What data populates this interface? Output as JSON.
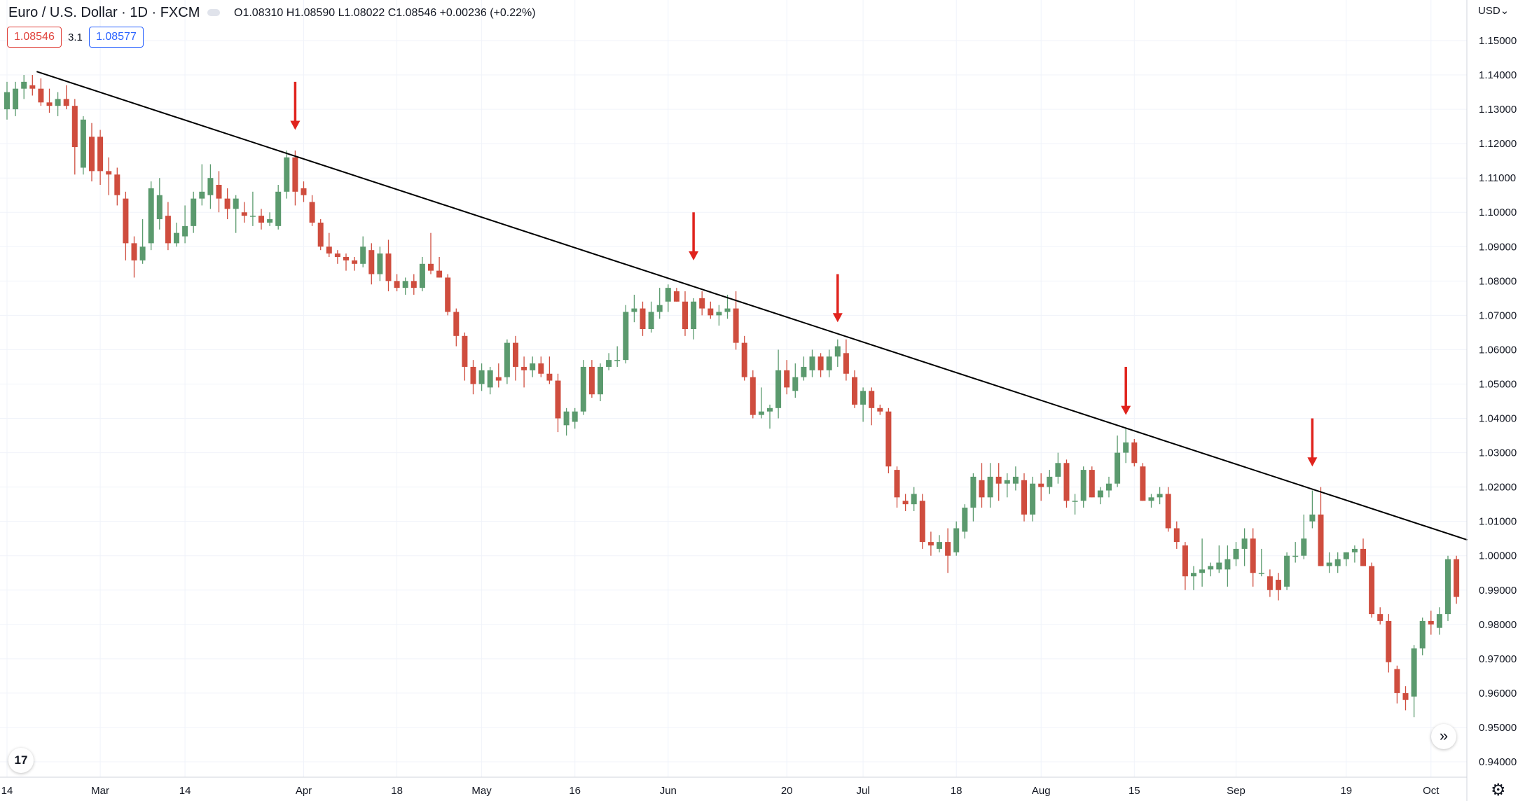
{
  "legend": {
    "title": "Euro / U.S. Dollar · 1D · FXCM",
    "ohlc": "O1.08310 H1.08590 L1.08022 C1.08546 +0.00236 (+0.22%)",
    "bid": "1.08546",
    "spread": "3.1",
    "ask": "1.08577"
  },
  "axis": {
    "currency": "USD",
    "currency_icon": "chevron-down-icon"
  },
  "logo": {
    "text": "17"
  },
  "colors": {
    "up": "#5b9a6e",
    "down": "#cf4d3e",
    "trendline": "#000000",
    "arrow": "#e0231d",
    "grid": "#f0f3fa"
  },
  "chart_data": {
    "type": "candlestick",
    "symbol": "EURUSD",
    "timeframe": "1D",
    "ylim": [
      0.94,
      1.15
    ],
    "y_ticks": [
      "1.15000",
      "1.14000",
      "1.13000",
      "1.12000",
      "1.11000",
      "1.10000",
      "1.09000",
      "1.08000",
      "1.07000",
      "1.06000",
      "1.05000",
      "1.04000",
      "1.03000",
      "1.02000",
      "1.01000",
      "1.00000",
      "0.99000",
      "0.98000",
      "0.97000",
      "0.96000",
      "0.95000",
      "0.94000"
    ],
    "x_ticks": [
      {
        "label": "14",
        "index": 0
      },
      {
        "label": "Mar",
        "index": 11
      },
      {
        "label": "14",
        "index": 21
      },
      {
        "label": "Apr",
        "index": 35
      },
      {
        "label": "18",
        "index": 46
      },
      {
        "label": "May",
        "index": 56
      },
      {
        "label": "16",
        "index": 67
      },
      {
        "label": "Jun",
        "index": 78
      },
      {
        "label": "20",
        "index": 92
      },
      {
        "label": "Jul",
        "index": 101
      },
      {
        "label": "18",
        "index": 112
      },
      {
        "label": "Aug",
        "index": 122
      },
      {
        "label": "15",
        "index": 133
      },
      {
        "label": "Sep",
        "index": 145
      },
      {
        "label": "19",
        "index": 158
      },
      {
        "label": "Oct",
        "index": 168
      }
    ],
    "candles": [
      {
        "o": 1.13,
        "h": 1.138,
        "l": 1.127,
        "c": 1.135
      },
      {
        "o": 1.13,
        "h": 1.138,
        "l": 1.128,
        "c": 1.136
      },
      {
        "o": 1.136,
        "h": 1.14,
        "l": 1.133,
        "c": 1.138
      },
      {
        "o": 1.137,
        "h": 1.14,
        "l": 1.134,
        "c": 1.136
      },
      {
        "o": 1.136,
        "h": 1.139,
        "l": 1.131,
        "c": 1.132
      },
      {
        "o": 1.132,
        "h": 1.136,
        "l": 1.129,
        "c": 1.131
      },
      {
        "o": 1.131,
        "h": 1.135,
        "l": 1.128,
        "c": 1.133
      },
      {
        "o": 1.133,
        "h": 1.137,
        "l": 1.13,
        "c": 1.131
      },
      {
        "o": 1.131,
        "h": 1.133,
        "l": 1.111,
        "c": 1.119
      },
      {
        "o": 1.113,
        "h": 1.128,
        "l": 1.111,
        "c": 1.127
      },
      {
        "o": 1.122,
        "h": 1.126,
        "l": 1.109,
        "c": 1.112
      },
      {
        "o": 1.122,
        "h": 1.124,
        "l": 1.108,
        "c": 1.112
      },
      {
        "o": 1.112,
        "h": 1.116,
        "l": 1.105,
        "c": 1.111
      },
      {
        "o": 1.111,
        "h": 1.113,
        "l": 1.102,
        "c": 1.105
      },
      {
        "o": 1.104,
        "h": 1.106,
        "l": 1.086,
        "c": 1.091
      },
      {
        "o": 1.091,
        "h": 1.093,
        "l": 1.081,
        "c": 1.086
      },
      {
        "o": 1.086,
        "h": 1.098,
        "l": 1.085,
        "c": 1.09
      },
      {
        "o": 1.091,
        "h": 1.109,
        "l": 1.089,
        "c": 1.107
      },
      {
        "o": 1.098,
        "h": 1.11,
        "l": 1.095,
        "c": 1.105
      },
      {
        "o": 1.099,
        "h": 1.103,
        "l": 1.089,
        "c": 1.091
      },
      {
        "o": 1.091,
        "h": 1.097,
        "l": 1.09,
        "c": 1.094
      },
      {
        "o": 1.093,
        "h": 1.102,
        "l": 1.091,
        "c": 1.096
      },
      {
        "o": 1.096,
        "h": 1.106,
        "l": 1.094,
        "c": 1.104
      },
      {
        "o": 1.104,
        "h": 1.114,
        "l": 1.102,
        "c": 1.106
      },
      {
        "o": 1.105,
        "h": 1.114,
        "l": 1.101,
        "c": 1.11
      },
      {
        "o": 1.108,
        "h": 1.112,
        "l": 1.1,
        "c": 1.104
      },
      {
        "o": 1.104,
        "h": 1.107,
        "l": 1.098,
        "c": 1.101
      },
      {
        "o": 1.101,
        "h": 1.105,
        "l": 1.094,
        "c": 1.104
      },
      {
        "o": 1.1,
        "h": 1.103,
        "l": 1.097,
        "c": 1.099
      },
      {
        "o": 1.099,
        "h": 1.106,
        "l": 1.096,
        "c": 1.099
      },
      {
        "o": 1.099,
        "h": 1.101,
        "l": 1.095,
        "c": 1.097
      },
      {
        "o": 1.097,
        "h": 1.1,
        "l": 1.096,
        "c": 1.098
      },
      {
        "o": 1.096,
        "h": 1.108,
        "l": 1.095,
        "c": 1.106
      },
      {
        "o": 1.106,
        "h": 1.118,
        "l": 1.104,
        "c": 1.116
      },
      {
        "o": 1.116,
        "h": 1.118,
        "l": 1.102,
        "c": 1.106
      },
      {
        "o": 1.107,
        "h": 1.109,
        "l": 1.103,
        "c": 1.105
      },
      {
        "o": 1.103,
        "h": 1.105,
        "l": 1.096,
        "c": 1.097
      },
      {
        "o": 1.097,
        "h": 1.098,
        "l": 1.089,
        "c": 1.09
      },
      {
        "o": 1.09,
        "h": 1.094,
        "l": 1.087,
        "c": 1.088
      },
      {
        "o": 1.088,
        "h": 1.089,
        "l": 1.085,
        "c": 1.087
      },
      {
        "o": 1.087,
        "h": 1.088,
        "l": 1.083,
        "c": 1.086
      },
      {
        "o": 1.086,
        "h": 1.087,
        "l": 1.083,
        "c": 1.085
      },
      {
        "o": 1.085,
        "h": 1.093,
        "l": 1.084,
        "c": 1.09
      },
      {
        "o": 1.089,
        "h": 1.091,
        "l": 1.079,
        "c": 1.082
      },
      {
        "o": 1.082,
        "h": 1.09,
        "l": 1.08,
        "c": 1.088
      },
      {
        "o": 1.088,
        "h": 1.092,
        "l": 1.077,
        "c": 1.08
      },
      {
        "o": 1.08,
        "h": 1.082,
        "l": 1.077,
        "c": 1.078
      },
      {
        "o": 1.078,
        "h": 1.081,
        "l": 1.076,
        "c": 1.08
      },
      {
        "o": 1.08,
        "h": 1.082,
        "l": 1.076,
        "c": 1.078
      },
      {
        "o": 1.078,
        "h": 1.087,
        "l": 1.077,
        "c": 1.085
      },
      {
        "o": 1.085,
        "h": 1.094,
        "l": 1.082,
        "c": 1.083
      },
      {
        "o": 1.083,
        "h": 1.087,
        "l": 1.081,
        "c": 1.081
      },
      {
        "o": 1.081,
        "h": 1.082,
        "l": 1.07,
        "c": 1.071
      },
      {
        "o": 1.071,
        "h": 1.072,
        "l": 1.061,
        "c": 1.064
      },
      {
        "o": 1.064,
        "h": 1.065,
        "l": 1.051,
        "c": 1.055
      },
      {
        "o": 1.055,
        "h": 1.057,
        "l": 1.047,
        "c": 1.05
      },
      {
        "o": 1.05,
        "h": 1.056,
        "l": 1.048,
        "c": 1.054
      },
      {
        "o": 1.049,
        "h": 1.055,
        "l": 1.047,
        "c": 1.054
      },
      {
        "o": 1.052,
        "h": 1.056,
        "l": 1.049,
        "c": 1.051
      },
      {
        "o": 1.052,
        "h": 1.063,
        "l": 1.05,
        "c": 1.062
      },
      {
        "o": 1.062,
        "h": 1.064,
        "l": 1.051,
        "c": 1.055
      },
      {
        "o": 1.055,
        "h": 1.058,
        "l": 1.049,
        "c": 1.054
      },
      {
        "o": 1.054,
        "h": 1.058,
        "l": 1.052,
        "c": 1.056
      },
      {
        "o": 1.056,
        "h": 1.058,
        "l": 1.052,
        "c": 1.053
      },
      {
        "o": 1.053,
        "h": 1.058,
        "l": 1.05,
        "c": 1.051
      },
      {
        "o": 1.051,
        "h": 1.053,
        "l": 1.036,
        "c": 1.04
      },
      {
        "o": 1.038,
        "h": 1.043,
        "l": 1.035,
        "c": 1.042
      },
      {
        "o": 1.039,
        "h": 1.043,
        "l": 1.037,
        "c": 1.042
      },
      {
        "o": 1.042,
        "h": 1.057,
        "l": 1.041,
        "c": 1.055
      },
      {
        "o": 1.055,
        "h": 1.057,
        "l": 1.046,
        "c": 1.047
      },
      {
        "o": 1.047,
        "h": 1.056,
        "l": 1.045,
        "c": 1.055
      },
      {
        "o": 1.055,
        "h": 1.059,
        "l": 1.054,
        "c": 1.057
      },
      {
        "o": 1.057,
        "h": 1.061,
        "l": 1.055,
        "c": 1.057
      },
      {
        "o": 1.057,
        "h": 1.073,
        "l": 1.056,
        "c": 1.071
      },
      {
        "o": 1.071,
        "h": 1.076,
        "l": 1.068,
        "c": 1.072
      },
      {
        "o": 1.072,
        "h": 1.074,
        "l": 1.064,
        "c": 1.066
      },
      {
        "o": 1.066,
        "h": 1.074,
        "l": 1.065,
        "c": 1.071
      },
      {
        "o": 1.071,
        "h": 1.078,
        "l": 1.069,
        "c": 1.073
      },
      {
        "o": 1.074,
        "h": 1.079,
        "l": 1.071,
        "c": 1.078
      },
      {
        "o": 1.077,
        "h": 1.078,
        "l": 1.074,
        "c": 1.074
      },
      {
        "o": 1.074,
        "h": 1.077,
        "l": 1.064,
        "c": 1.066
      },
      {
        "o": 1.066,
        "h": 1.075,
        "l": 1.063,
        "c": 1.074
      },
      {
        "o": 1.075,
        "h": 1.077,
        "l": 1.07,
        "c": 1.072
      },
      {
        "o": 1.072,
        "h": 1.074,
        "l": 1.069,
        "c": 1.07
      },
      {
        "o": 1.07,
        "h": 1.073,
        "l": 1.067,
        "c": 1.071
      },
      {
        "o": 1.071,
        "h": 1.076,
        "l": 1.069,
        "c": 1.072
      },
      {
        "o": 1.072,
        "h": 1.077,
        "l": 1.06,
        "c": 1.062
      },
      {
        "o": 1.062,
        "h": 1.064,
        "l": 1.051,
        "c": 1.052
      },
      {
        "o": 1.052,
        "h": 1.054,
        "l": 1.04,
        "c": 1.041
      },
      {
        "o": 1.041,
        "h": 1.049,
        "l": 1.04,
        "c": 1.042
      },
      {
        "o": 1.042,
        "h": 1.044,
        "l": 1.037,
        "c": 1.043
      },
      {
        "o": 1.043,
        "h": 1.06,
        "l": 1.04,
        "c": 1.054
      },
      {
        "o": 1.054,
        "h": 1.057,
        "l": 1.047,
        "c": 1.049
      },
      {
        "o": 1.048,
        "h": 1.056,
        "l": 1.046,
        "c": 1.052
      },
      {
        "o": 1.052,
        "h": 1.058,
        "l": 1.051,
        "c": 1.055
      },
      {
        "o": 1.054,
        "h": 1.06,
        "l": 1.052,
        "c": 1.058
      },
      {
        "o": 1.058,
        "h": 1.059,
        "l": 1.052,
        "c": 1.054
      },
      {
        "o": 1.054,
        "h": 1.06,
        "l": 1.052,
        "c": 1.058
      },
      {
        "o": 1.058,
        "h": 1.063,
        "l": 1.055,
        "c": 1.061
      },
      {
        "o": 1.059,
        "h": 1.063,
        "l": 1.051,
        "c": 1.053
      },
      {
        "o": 1.052,
        "h": 1.054,
        "l": 1.043,
        "c": 1.044
      },
      {
        "o": 1.044,
        "h": 1.049,
        "l": 1.039,
        "c": 1.048
      },
      {
        "o": 1.048,
        "h": 1.049,
        "l": 1.038,
        "c": 1.043
      },
      {
        "o": 1.043,
        "h": 1.044,
        "l": 1.041,
        "c": 1.042
      },
      {
        "o": 1.042,
        "h": 1.043,
        "l": 1.024,
        "c": 1.026
      },
      {
        "o": 1.025,
        "h": 1.026,
        "l": 1.014,
        "c": 1.017
      },
      {
        "o": 1.016,
        "h": 1.018,
        "l": 1.013,
        "c": 1.015
      },
      {
        "o": 1.015,
        "h": 1.02,
        "l": 1.013,
        "c": 1.018
      },
      {
        "o": 1.016,
        "h": 1.018,
        "l": 1.002,
        "c": 1.004
      },
      {
        "o": 1.004,
        "h": 1.007,
        "l": 1.0,
        "c": 1.003
      },
      {
        "o": 1.002,
        "h": 1.006,
        "l": 1.001,
        "c": 1.004
      },
      {
        "o": 1.004,
        "h": 1.008,
        "l": 0.995,
        "c": 1.0
      },
      {
        "o": 1.001,
        "h": 1.01,
        "l": 1.0,
        "c": 1.008
      },
      {
        "o": 1.007,
        "h": 1.015,
        "l": 1.005,
        "c": 1.014
      },
      {
        "o": 1.014,
        "h": 1.024,
        "l": 1.01,
        "c": 1.023
      },
      {
        "o": 1.022,
        "h": 1.027,
        "l": 1.014,
        "c": 1.017
      },
      {
        "o": 1.017,
        "h": 1.027,
        "l": 1.014,
        "c": 1.023
      },
      {
        "o": 1.023,
        "h": 1.027,
        "l": 1.016,
        "c": 1.021
      },
      {
        "o": 1.021,
        "h": 1.024,
        "l": 1.017,
        "c": 1.022
      },
      {
        "o": 1.021,
        "h": 1.026,
        "l": 1.019,
        "c": 1.023
      },
      {
        "o": 1.022,
        "h": 1.024,
        "l": 1.01,
        "c": 1.012
      },
      {
        "o": 1.012,
        "h": 1.023,
        "l": 1.01,
        "c": 1.021
      },
      {
        "o": 1.021,
        "h": 1.024,
        "l": 1.016,
        "c": 1.02
      },
      {
        "o": 1.02,
        "h": 1.025,
        "l": 1.018,
        "c": 1.023
      },
      {
        "o": 1.023,
        "h": 1.03,
        "l": 1.021,
        "c": 1.027
      },
      {
        "o": 1.027,
        "h": 1.028,
        "l": 1.014,
        "c": 1.016
      },
      {
        "o": 1.016,
        "h": 1.018,
        "l": 1.012,
        "c": 1.016
      },
      {
        "o": 1.016,
        "h": 1.026,
        "l": 1.014,
        "c": 1.025
      },
      {
        "o": 1.025,
        "h": 1.026,
        "l": 1.017,
        "c": 1.017
      },
      {
        "o": 1.017,
        "h": 1.02,
        "l": 1.015,
        "c": 1.019
      },
      {
        "o": 1.019,
        "h": 1.023,
        "l": 1.017,
        "c": 1.021
      },
      {
        "o": 1.021,
        "h": 1.035,
        "l": 1.02,
        "c": 1.03
      },
      {
        "o": 1.03,
        "h": 1.037,
        "l": 1.027,
        "c": 1.033
      },
      {
        "o": 1.033,
        "h": 1.034,
        "l": 1.026,
        "c": 1.027
      },
      {
        "o": 1.026,
        "h": 1.027,
        "l": 1.016,
        "c": 1.016
      },
      {
        "o": 1.016,
        "h": 1.018,
        "l": 1.014,
        "c": 1.017
      },
      {
        "o": 1.017,
        "h": 1.02,
        "l": 1.015,
        "c": 1.018
      },
      {
        "o": 1.018,
        "h": 1.02,
        "l": 1.007,
        "c": 1.008
      },
      {
        "o": 1.008,
        "h": 1.01,
        "l": 1.002,
        "c": 1.004
      },
      {
        "o": 1.003,
        "h": 1.004,
        "l": 0.99,
        "c": 0.994
      },
      {
        "o": 0.994,
        "h": 0.997,
        "l": 0.99,
        "c": 0.995
      },
      {
        "o": 0.995,
        "h": 1.005,
        "l": 0.991,
        "c": 0.996
      },
      {
        "o": 0.996,
        "h": 0.998,
        "l": 0.994,
        "c": 0.997
      },
      {
        "o": 0.996,
        "h": 1.003,
        "l": 0.995,
        "c": 0.998
      },
      {
        "o": 0.996,
        "h": 1.003,
        "l": 0.991,
        "c": 0.999
      },
      {
        "o": 0.999,
        "h": 1.004,
        "l": 0.997,
        "c": 1.002
      },
      {
        "o": 1.002,
        "h": 1.008,
        "l": 0.997,
        "c": 1.005
      },
      {
        "o": 1.005,
        "h": 1.008,
        "l": 0.991,
        "c": 0.995
      },
      {
        "o": 0.995,
        "h": 1.002,
        "l": 0.994,
        "c": 0.995
      },
      {
        "o": 0.994,
        "h": 0.996,
        "l": 0.988,
        "c": 0.99
      },
      {
        "o": 0.993,
        "h": 0.995,
        "l": 0.987,
        "c": 0.99
      },
      {
        "o": 0.991,
        "h": 1.001,
        "l": 0.99,
        "c": 1.0
      },
      {
        "o": 1.0,
        "h": 1.004,
        "l": 0.998,
        "c": 1.0
      },
      {
        "o": 1.0,
        "h": 1.012,
        "l": 0.999,
        "c": 1.005
      },
      {
        "o": 1.01,
        "h": 1.019,
        "l": 1.008,
        "c": 1.012
      },
      {
        "o": 1.012,
        "h": 1.02,
        "l": 0.997,
        "c": 0.997
      },
      {
        "o": 0.997,
        "h": 1.001,
        "l": 0.995,
        "c": 0.998
      },
      {
        "o": 0.997,
        "h": 1.001,
        "l": 0.995,
        "c": 0.999
      },
      {
        "o": 0.999,
        "h": 1.001,
        "l": 0.997,
        "c": 1.001
      },
      {
        "o": 1.001,
        "h": 1.003,
        "l": 0.998,
        "c": 1.002
      },
      {
        "o": 1.002,
        "h": 1.005,
        "l": 0.997,
        "c": 0.997
      },
      {
        "o": 0.997,
        "h": 0.998,
        "l": 0.982,
        "c": 0.983
      },
      {
        "o": 0.983,
        "h": 0.985,
        "l": 0.98,
        "c": 0.981
      },
      {
        "o": 0.981,
        "h": 0.983,
        "l": 0.966,
        "c": 0.969
      },
      {
        "o": 0.967,
        "h": 0.968,
        "l": 0.957,
        "c": 0.96
      },
      {
        "o": 0.96,
        "h": 0.962,
        "l": 0.955,
        "c": 0.958
      },
      {
        "o": 0.959,
        "h": 0.974,
        "l": 0.953,
        "c": 0.973
      },
      {
        "o": 0.973,
        "h": 0.982,
        "l": 0.971,
        "c": 0.981
      },
      {
        "o": 0.981,
        "h": 0.984,
        "l": 0.977,
        "c": 0.98
      },
      {
        "o": 0.979,
        "h": 0.985,
        "l": 0.977,
        "c": 0.983
      },
      {
        "o": 0.983,
        "h": 1.0,
        "l": 0.981,
        "c": 0.999
      },
      {
        "o": 0.999,
        "h": 1.0,
        "l": 0.986,
        "c": 0.988
      }
    ],
    "trendline": {
      "start": {
        "index": 3.5,
        "value": 1.141
      },
      "end": {
        "index": 172.3,
        "value": 1.0046
      }
    },
    "arrows": [
      {
        "index": 34,
        "tip": 1.124,
        "tail": 1.138
      },
      {
        "index": 81,
        "tip": 1.086,
        "tail": 1.1
      },
      {
        "index": 98,
        "tip": 1.068,
        "tail": 1.082
      },
      {
        "index": 132,
        "tip": 1.041,
        "tail": 1.055
      },
      {
        "index": 154,
        "tip": 1.026,
        "tail": 1.04
      }
    ]
  }
}
